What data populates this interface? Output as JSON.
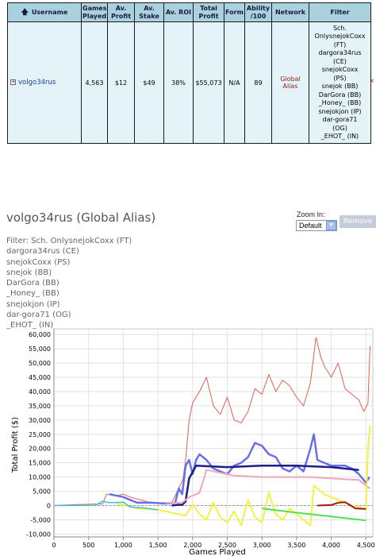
{
  "table": {
    "headers": [
      "Username",
      "Games Played",
      "Av. Profit",
      "Av. Stake",
      "Av. ROI",
      "Total Profit",
      "Form",
      "Ability /100",
      "Network",
      "Filter"
    ],
    "sort_icon": "up-arrow-icon",
    "row": {
      "expand_symbol": "+",
      "username": "volgo34rus",
      "games_played": "4,563",
      "av_profit": "$12",
      "av_stake": "$49",
      "av_roi": "38%",
      "total_profit": "$55,073",
      "form": "N/A",
      "ability": "89",
      "network": "Global Alias",
      "filter_lines": [
        "Sch.",
        "OnlysnejokCoxx",
        "(FT)",
        "dargora34rus",
        "(CE)",
        "snejokCoxx",
        "(PS)",
        "snejok (BB)",
        "DarGora (BB)",
        "_Honey_ (BB)",
        "snejokjon (IP)",
        "dar-gora71",
        "(OG)",
        "_EHOT_ (IN)"
      ]
    },
    "remove_mark": "x"
  },
  "detail": {
    "title": "volgo34rus (Global Alias)",
    "filter_lines": [
      "Filter: Sch. OnlysnejokCoxx (FT)",
      "dargora34rus (CE)",
      "snejokCoxx (PS)",
      "snejok (BB)",
      "DarGora (BB)",
      "_Honey_ (BB)",
      "snejokjon (IP)",
      "dar-gora71 (OG)",
      "_EHOT_ (IN)"
    ],
    "zoom_label": "Zoom In:",
    "zoom_value": "Default",
    "remove_label": "Remove"
  },
  "chart_data": {
    "type": "line",
    "title": "",
    "xlabel": "Games Played",
    "ylabel": "Total Profit ($)",
    "xlim": [
      0,
      4600
    ],
    "ylim": [
      -11000,
      62000
    ],
    "x_ticks": [
      0,
      500,
      1000,
      1500,
      2000,
      2500,
      3000,
      3500,
      4000,
      4500
    ],
    "x_tick_labels": [
      "0",
      "500",
      "1,000",
      "1,500",
      "2,000",
      "2,500",
      "3,000",
      "3,500",
      "4,000",
      "4,500"
    ],
    "y_ticks": [
      -10000,
      -5000,
      0,
      5000,
      10000,
      15000,
      20000,
      25000,
      30000,
      35000,
      40000,
      45000,
      50000,
      55000,
      60000
    ],
    "y_tick_labels": [
      "-10,000",
      "-5,000",
      "0",
      "5,000",
      "10,000",
      "15,000",
      "20,000",
      "25,000",
      "30,000",
      "35,000",
      "40,000",
      "45,000",
      "50,000",
      "55,000",
      "60,000"
    ],
    "grid": true,
    "zero_line": "dashed",
    "series": [
      {
        "color": "#e06050",
        "width": 1,
        "points": [
          [
            0,
            0
          ],
          [
            300,
            300
          ],
          [
            700,
            600
          ],
          [
            760,
            4000
          ],
          [
            900,
            3500
          ],
          [
            1000,
            4000
          ],
          [
            1100,
            3000
          ],
          [
            1400,
            1000
          ],
          [
            1700,
            1000
          ],
          [
            1860,
            9000
          ],
          [
            1900,
            16000
          ],
          [
            1950,
            30000
          ],
          [
            2000,
            36000
          ],
          [
            2100,
            40000
          ],
          [
            2200,
            45000
          ],
          [
            2300,
            35000
          ],
          [
            2400,
            32000
          ],
          [
            2500,
            38000
          ],
          [
            2600,
            30000
          ],
          [
            2700,
            29000
          ],
          [
            2800,
            33000
          ],
          [
            2900,
            41000
          ],
          [
            3000,
            39000
          ],
          [
            3100,
            46000
          ],
          [
            3200,
            40000
          ],
          [
            3300,
            44000
          ],
          [
            3400,
            42000
          ],
          [
            3500,
            38000
          ],
          [
            3600,
            35000
          ],
          [
            3700,
            43000
          ],
          [
            3780,
            59000
          ],
          [
            3850,
            52000
          ],
          [
            3900,
            49000
          ],
          [
            4000,
            45000
          ],
          [
            4100,
            50000
          ],
          [
            4200,
            41000
          ],
          [
            4300,
            39000
          ],
          [
            4400,
            37000
          ],
          [
            4470,
            33000
          ],
          [
            4530,
            36000
          ],
          [
            4560,
            56000
          ]
        ]
      },
      {
        "color": "#6870e8",
        "width": 2.5,
        "points": [
          [
            800,
            4000
          ],
          [
            1000,
            3000
          ],
          [
            1200,
            1000
          ],
          [
            1400,
            1000
          ],
          [
            1600,
            700
          ],
          [
            1750,
            1000
          ],
          [
            1800,
            6000
          ],
          [
            1850,
            4000
          ],
          [
            1900,
            14000
          ],
          [
            1950,
            16000
          ],
          [
            2000,
            11000
          ],
          [
            2050,
            16000
          ],
          [
            2100,
            18000
          ],
          [
            2200,
            16000
          ],
          [
            2300,
            13000
          ],
          [
            2400,
            12000
          ],
          [
            2500,
            11000
          ],
          [
            2600,
            14000
          ],
          [
            2700,
            15000
          ],
          [
            2800,
            17000
          ],
          [
            2900,
            22000
          ],
          [
            3000,
            21000
          ],
          [
            3100,
            18000
          ],
          [
            3200,
            17000
          ],
          [
            3300,
            13000
          ],
          [
            3400,
            12000
          ],
          [
            3500,
            14000
          ],
          [
            3600,
            12000
          ],
          [
            3700,
            20000
          ],
          [
            3750,
            25000
          ],
          [
            3800,
            16000
          ],
          [
            4000,
            14000
          ],
          [
            4200,
            14000
          ],
          [
            4300,
            13000
          ],
          [
            4400,
            11000
          ],
          [
            4500,
            8000
          ],
          [
            4550,
            10000
          ]
        ]
      },
      {
        "color": "#1e1e8a",
        "width": 2.5,
        "points": [
          [
            1700,
            0
          ],
          [
            1800,
            300
          ],
          [
            1850,
            200
          ],
          [
            1900,
            1500
          ],
          [
            1950,
            9500
          ],
          [
            2050,
            14000
          ],
          [
            2500,
            13500
          ],
          [
            3000,
            14000
          ],
          [
            3500,
            14000
          ],
          [
            4000,
            13500
          ],
          [
            4400,
            12500
          ]
        ]
      },
      {
        "color": "#f0a8b8",
        "width": 2,
        "points": [
          [
            1600,
            1000
          ],
          [
            1850,
            1000
          ],
          [
            1950,
            3000
          ],
          [
            2100,
            4500
          ],
          [
            2200,
            12500
          ],
          [
            2600,
            10500
          ],
          [
            3000,
            10000
          ],
          [
            3500,
            10000
          ],
          [
            3700,
            10000
          ],
          [
            4000,
            9500
          ],
          [
            4400,
            9000
          ],
          [
            4500,
            7000
          ],
          [
            4560,
            6000
          ]
        ]
      },
      {
        "color": "#f2f240",
        "width": 2,
        "points": [
          [
            900,
            800
          ],
          [
            1200,
            -1000
          ],
          [
            1500,
            -1500
          ],
          [
            1800,
            -3000
          ],
          [
            1900,
            -3500
          ],
          [
            2000,
            500
          ],
          [
            2100,
            -3000
          ],
          [
            2200,
            -5000
          ],
          [
            2300,
            1000
          ],
          [
            2400,
            -4000
          ],
          [
            2500,
            -6000
          ],
          [
            2600,
            -2000
          ],
          [
            2700,
            -7000
          ],
          [
            2800,
            2000
          ],
          [
            2900,
            -4000
          ],
          [
            3000,
            -6000
          ],
          [
            3100,
            4500
          ],
          [
            3200,
            -3000
          ],
          [
            3300,
            -5000
          ],
          [
            3400,
            -1000
          ],
          [
            3500,
            -3000
          ],
          [
            3600,
            -5000
          ],
          [
            3700,
            -7000
          ],
          [
            3750,
            7000
          ],
          [
            3900,
            4000
          ],
          [
            4000,
            3000
          ],
          [
            4100,
            2000
          ],
          [
            4200,
            1000
          ],
          [
            4300,
            0
          ],
          [
            4400,
            -500
          ],
          [
            4500,
            -1500
          ],
          [
            4530,
            20000
          ],
          [
            4560,
            28000
          ]
        ]
      },
      {
        "color": "#50e050",
        "width": 2,
        "points": [
          [
            3000,
            -1000
          ],
          [
            3500,
            -2500
          ],
          [
            4000,
            -3800
          ],
          [
            4500,
            -5200
          ]
        ]
      },
      {
        "color": "#a01818",
        "width": 2,
        "points": [
          [
            3800,
            0
          ],
          [
            4000,
            200
          ],
          [
            4100,
            1000
          ],
          [
            4200,
            1200
          ],
          [
            4350,
            -1000
          ],
          [
            4500,
            -1200
          ]
        ]
      },
      {
        "color": "#40c0d8",
        "width": 1.5,
        "points": [
          [
            0,
            0
          ],
          [
            600,
            100
          ],
          [
            700,
            1500
          ],
          [
            800,
            1000
          ],
          [
            1000,
            1200
          ],
          [
            1100,
            -500
          ],
          [
            1300,
            -800
          ],
          [
            1500,
            -1500
          ]
        ]
      }
    ]
  }
}
